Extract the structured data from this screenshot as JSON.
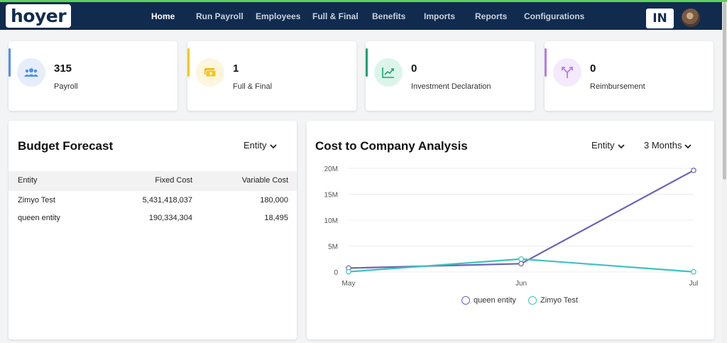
{
  "brand": {
    "logo_text": "hoyer"
  },
  "nav": {
    "items": [
      {
        "label": "Home",
        "active": true
      },
      {
        "label": "Run Payroll"
      },
      {
        "label": "Employees"
      },
      {
        "label": "Full & Final"
      },
      {
        "label": "Benefits"
      },
      {
        "label": "Imports"
      },
      {
        "label": "Reports"
      },
      {
        "label": "Configurations"
      }
    ],
    "language": "IN"
  },
  "stats": [
    {
      "value": "315",
      "label": "Payroll",
      "accent": "#4f8ef7",
      "icon": "users-icon",
      "icon_bg": "#e6eefc"
    },
    {
      "value": "1",
      "label": "Full & Final",
      "accent": "#f5c518",
      "icon": "money-icon",
      "icon_bg": "#fdf5dd"
    },
    {
      "value": "0",
      "label": "Investment Declaration",
      "accent": "#1aa36f",
      "icon": "trend-chart-icon",
      "icon_bg": "#dcf5ea"
    },
    {
      "value": "0",
      "label": "Reimbursement",
      "accent": "#b57ce6",
      "icon": "split-arrows-icon",
      "icon_bg": "#f4eafb"
    }
  ],
  "budget": {
    "title": "Budget Forecast",
    "filter": "Entity",
    "columns": [
      "Entity",
      "Fixed Cost",
      "Variable Cost"
    ],
    "rows": [
      [
        "Zimyo Test",
        "5,431,418,037",
        "180,000"
      ],
      [
        "queen entity",
        "190,334,304",
        "18,495"
      ]
    ]
  },
  "ctc": {
    "title": "Cost to Company Analysis",
    "filter_entity": "Entity",
    "filter_period": "3 Months"
  },
  "chart_data": {
    "type": "line",
    "x": [
      "May",
      "Jun",
      "Jul"
    ],
    "ylim": [
      0,
      20000000
    ],
    "y_ticks": [
      "0",
      "5M",
      "10M",
      "15M",
      "20M"
    ],
    "grid": true,
    "legend_placement": "bottom",
    "series": [
      {
        "name": "queen entity",
        "color": "#6b63b5",
        "values": [
          750000,
          1600000,
          19600000
        ]
      },
      {
        "name": "Zimyo Test",
        "color": "#3cc2c0",
        "values": [
          50000,
          2500000,
          30000
        ]
      }
    ]
  }
}
